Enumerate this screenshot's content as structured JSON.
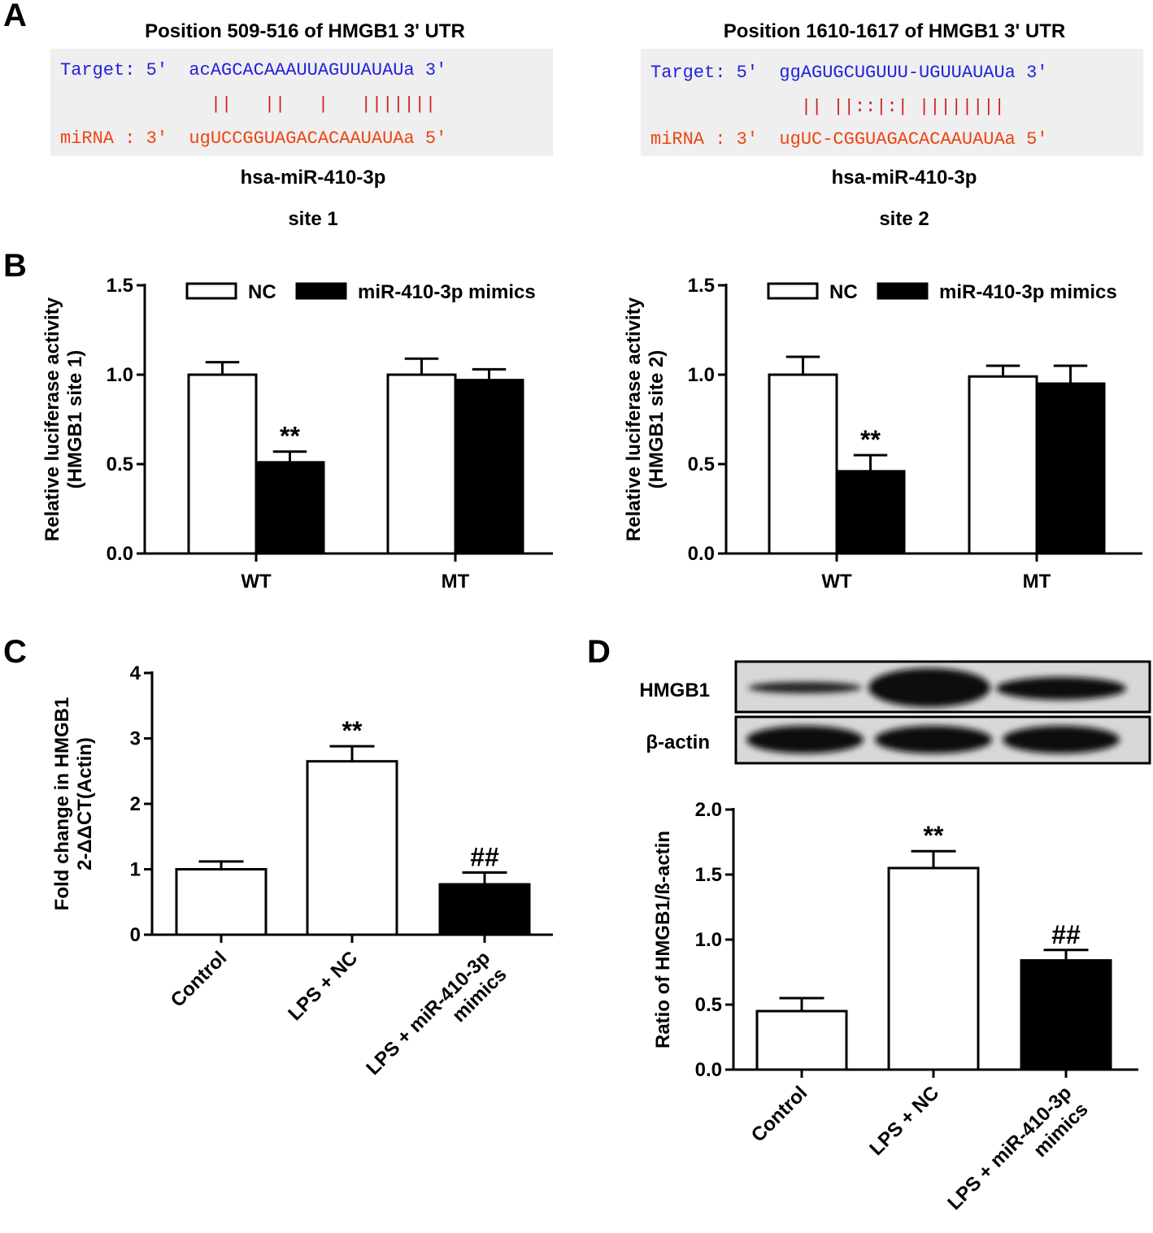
{
  "panel_labels": [
    "A",
    "B",
    "C",
    "D"
  ],
  "alignments": [
    {
      "title": "Position 509-516 of HMGB1 3' UTR",
      "target": "Target: 5'  acAGCACAAAUUAGUUAUAUa 3'",
      "pairing": "              ||   ||   |   |||||||",
      "mirna": "miRNA : 3'  ugUCCGGUAGACACAAUAUAa 5'",
      "name": "hsa-miR-410-3p",
      "site": "site 1"
    },
    {
      "title": "Position 1610-1617 of HMGB1 3' UTR",
      "target": "Target: 5'  ggAGUGCUGUUU-UGUUAUAUa 3'",
      "pairing": "              || ||::|:| ||||||||",
      "mirna": "miRNA : 3'  ugUC-CGGUAGACACAAUAUAa 5'",
      "name": "hsa-miR-410-3p",
      "site": "site 2"
    }
  ],
  "blot": {
    "rows": [
      "HMGB1",
      "β-actin"
    ]
  },
  "chart_data": [
    {
      "type": "grouped_bar",
      "y_label": [
        "Relative luciferase activity",
        "(HMGB1 site 1)"
      ],
      "categories": [
        "WT",
        "MT"
      ],
      "legend": "top",
      "series": [
        {
          "name": "NC",
          "color": "#ffffff",
          "values": [
            1.0,
            1.0
          ],
          "errors": [
            0.07,
            0.09
          ],
          "annotations": [
            null,
            null
          ]
        },
        {
          "name": "miR-410-3p mimics",
          "color": "#000000",
          "values": [
            0.51,
            0.97
          ],
          "errors": [
            0.06,
            0.06
          ],
          "annotations": [
            "**",
            null
          ]
        }
      ],
      "ylim": [
        0,
        1.5
      ],
      "yticks": [
        {
          "value": 0,
          "label": "0.0"
        },
        {
          "value": 0.5,
          "label": "0.5"
        },
        {
          "value": 1,
          "label": "1.0"
        },
        {
          "value": 1.5,
          "label": "1.5"
        }
      ]
    },
    {
      "type": "grouped_bar",
      "y_label": [
        "Relative luciferase activity",
        "(HMGB1 site 2)"
      ],
      "categories": [
        "WT",
        "MT"
      ],
      "legend": "top",
      "series": [
        {
          "name": "NC",
          "color": "#ffffff",
          "values": [
            1.0,
            0.99
          ],
          "errors": [
            0.1,
            0.06
          ],
          "annotations": [
            null,
            null
          ]
        },
        {
          "name": "miR-410-3p mimics",
          "color": "#000000",
          "values": [
            0.46,
            0.95
          ],
          "errors": [
            0.09,
            0.1
          ],
          "annotations": [
            "**",
            null
          ]
        }
      ],
      "ylim": [
        0,
        1.5
      ],
      "yticks": [
        {
          "value": 0,
          "label": "0.0"
        },
        {
          "value": 0.5,
          "label": "0.5"
        },
        {
          "value": 1,
          "label": "1.0"
        },
        {
          "value": 1.5,
          "label": "1.5"
        }
      ]
    },
    {
      "type": "bar",
      "y_label": [
        "Fold change in HMGB1",
        "2-ΔΔCT(Actin)"
      ],
      "categories": [
        "Control",
        "LPS + NC",
        "LPS + miR-410-3p\nmimics"
      ],
      "values": [
        1.0,
        2.65,
        0.77
      ],
      "errors": [
        0.12,
        0.23,
        0.18
      ],
      "colors": [
        "#ffffff",
        "#ffffff",
        "#000000"
      ],
      "annotations": [
        null,
        "**",
        "##"
      ],
      "ylim": [
        0,
        4
      ],
      "yticks": [
        0,
        1,
        2,
        3,
        4
      ]
    },
    {
      "type": "bar",
      "y_label": [
        "Ratio of HMGB1/ß-actin"
      ],
      "categories": [
        "Control",
        "LPS + NC",
        "LPS + miR-410-3p\nmimics"
      ],
      "values": [
        0.45,
        1.55,
        0.84
      ],
      "errors": [
        0.1,
        0.13,
        0.08
      ],
      "colors": [
        "#ffffff",
        "#ffffff",
        "#000000"
      ],
      "annotations": [
        null,
        "**",
        "##"
      ],
      "ylim": [
        0,
        2
      ],
      "yticks": [
        {
          "value": 0,
          "label": "0.0"
        },
        {
          "value": 0.5,
          "label": "0.5"
        },
        {
          "value": 1,
          "label": "1.0"
        },
        {
          "value": 1.5,
          "label": "1.5"
        },
        {
          "value": 2,
          "label": "2.0"
        }
      ]
    }
  ]
}
